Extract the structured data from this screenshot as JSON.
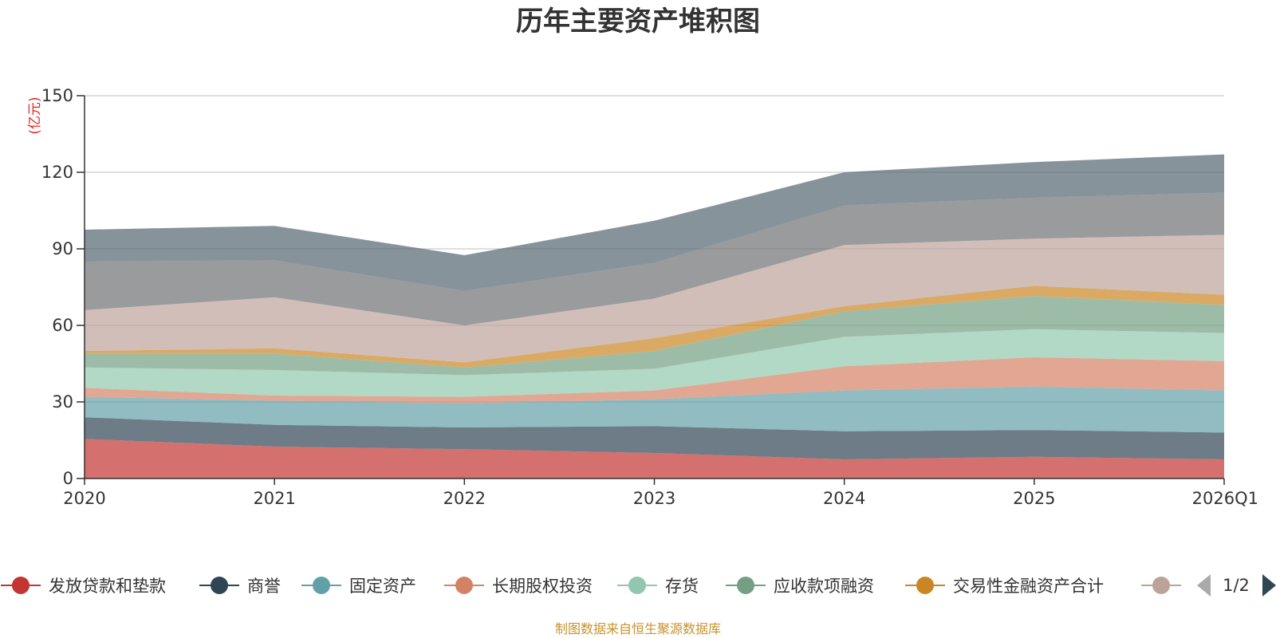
{
  "chart_data": {
    "type": "area",
    "stacked": true,
    "title": "历年主要资产堆积图",
    "ylabel": "(亿元)",
    "xlabel": "",
    "ylim": [
      0,
      150
    ],
    "yticks": [
      0,
      30,
      60,
      90,
      120,
      150
    ],
    "categories": [
      "2020",
      "2021",
      "2022",
      "2023",
      "2024",
      "2025",
      "2026Q1"
    ],
    "grid": true,
    "series": [
      {
        "name": "发放贷款和垫款",
        "color": "#c23531",
        "values": [
          15.5,
          12.5,
          11.5,
          10.0,
          7.5,
          8.5,
          7.5
        ]
      },
      {
        "name": "商誉",
        "color": "#2f4554",
        "values": [
          8.5,
          8.5,
          8.5,
          10.5,
          11.0,
          10.5,
          10.5
        ]
      },
      {
        "name": "固定资产",
        "color": "#61a0a8",
        "values": [
          8.0,
          9.5,
          9.5,
          10.5,
          16.0,
          17.0,
          16.5
        ]
      },
      {
        "name": "长期股权投资",
        "color": "#d48265",
        "values": [
          3.5,
          2.0,
          2.5,
          3.5,
          9.5,
          11.5,
          11.5
        ]
      },
      {
        "name": "存货",
        "color": "#91c7ae",
        "values": [
          8.0,
          10.0,
          8.5,
          8.5,
          11.5,
          11.0,
          11.0
        ]
      },
      {
        "name": "应收款项融资",
        "color": "#749f83",
        "values": [
          5.5,
          6.5,
          3.0,
          7.0,
          10.0,
          13.0,
          11.0
        ]
      },
      {
        "name": "交易性金融资产合计",
        "color": "#ca8622",
        "values": [
          1.0,
          2.0,
          2.0,
          5.0,
          2.0,
          4.0,
          4.0
        ]
      },
      {
        "name": "",
        "color": "#bda29a",
        "values": [
          16.0,
          20.0,
          14.5,
          15.5,
          24.0,
          18.5,
          23.5
        ]
      },
      {
        "name": "",
        "color": "#6e7074",
        "values": [
          19.0,
          14.5,
          13.5,
          14.0,
          15.5,
          16.0,
          16.5
        ]
      },
      {
        "name": "",
        "color": "#546570",
        "values": [
          12.5,
          13.5,
          14.0,
          16.5,
          13.0,
          14.0,
          15.0
        ]
      }
    ]
  },
  "legend": {
    "items": [
      "发放贷款和垫款",
      "商誉",
      "固定资产",
      "长期股权投资",
      "存货",
      "应收款项融资",
      "交易性金融资产合计"
    ],
    "page": "1/2",
    "prev_icon": "triangle-left-icon",
    "next_icon": "triangle-right-icon"
  },
  "footer": {
    "source": "制图数据来自恒生聚源数据库"
  }
}
